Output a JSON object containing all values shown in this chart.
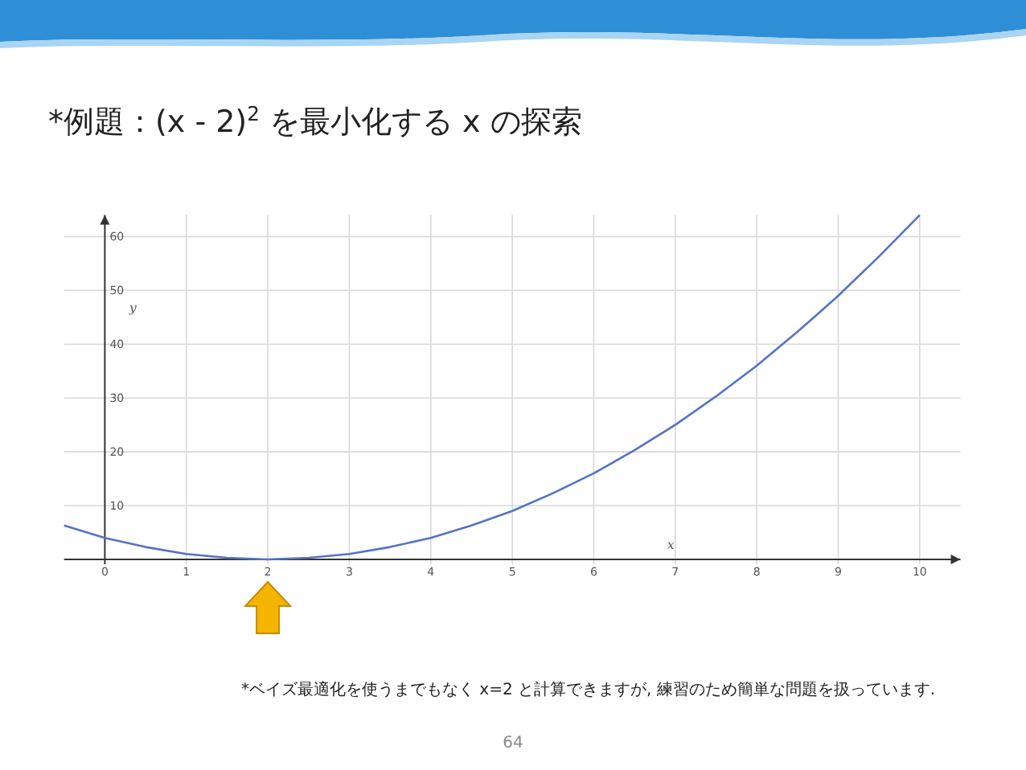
{
  "chart_data": {
    "type": "line",
    "title": "*例題：(x - 2)$^{2}$ を最小化する x の探索",
    "xlabel": "x",
    "ylabel": "y",
    "annotations": [
      "*ベイズ最適化を使うまでもなく x=2 と計算できますが, 練習のため簡単な問題を扱っています.",
      "64"
    ],
    "series": [
      {
        "color": "#5572c8",
        "x": [
          -0.5,
          0,
          0.5,
          1,
          1.5,
          2,
          2.5,
          3,
          3.5,
          4,
          4.5,
          5,
          5.5,
          6,
          6.5,
          7,
          7.5,
          8,
          8.5,
          9,
          9.5,
          10
        ],
        "values": [
          6.3,
          4,
          2.3,
          1,
          0.3,
          0,
          0.3,
          1,
          2.3,
          4,
          6.3,
          9,
          12.3,
          16,
          20.3,
          25,
          30.3,
          36,
          42.3,
          49,
          56.3,
          64
        ]
      }
    ],
    "xlim": [
      -0.5,
      10.5
    ],
    "ylim": [
      -1,
      64
    ],
    "xticks": [
      0,
      1,
      2,
      3,
      4,
      5,
      6,
      7,
      8,
      9,
      10
    ],
    "yticks": [
      {
        "value": 0,
        "label": null
      },
      10,
      20,
      30,
      40,
      50,
      60
    ],
    "grid": true
  }
}
